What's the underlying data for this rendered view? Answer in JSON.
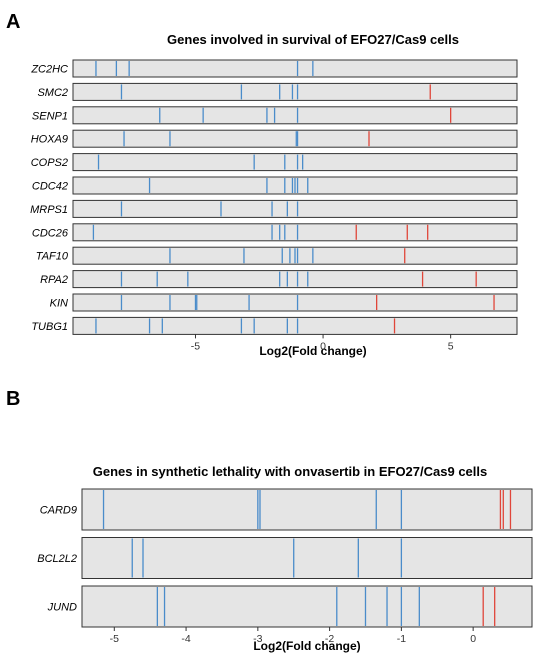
{
  "panel_letters": [
    "A",
    "B"
  ],
  "colors": {
    "negative": "#4a8cca",
    "positive": "#e0463a",
    "row_fill": "#e5e5e5"
  },
  "chart_data": [
    {
      "type": "barcode",
      "title": "Genes involved in survival of EFO27/Cas9 cells",
      "xlabel": "Log2(Fold change)",
      "ylabel": "",
      "xlim": [
        -9.8,
        7.6
      ],
      "xticks": [
        -5,
        0,
        5
      ],
      "grid": false,
      "rows": [
        {
          "gene": "ZC2HC",
          "values": [
            -8.9,
            -8.1,
            -7.6,
            -1.0,
            -0.4
          ]
        },
        {
          "gene": "SMC2",
          "values": [
            -7.9,
            -3.2,
            -1.7,
            -1.2,
            -1.0,
            4.2
          ]
        },
        {
          "gene": "SENP1",
          "values": [
            -6.4,
            -4.7,
            -2.2,
            -1.9,
            -1.0,
            5.0
          ]
        },
        {
          "gene": "HOXA9",
          "values": [
            -7.8,
            -6.0,
            -1.05,
            -1.0,
            1.8
          ]
        },
        {
          "gene": "COPS2",
          "values": [
            -8.8,
            -2.7,
            -1.5,
            -1.0,
            -0.8
          ]
        },
        {
          "gene": "CDC42",
          "values": [
            -6.8,
            -2.2,
            -1.5,
            -1.2,
            -1.1,
            -1.0,
            -0.6
          ]
        },
        {
          "gene": "MRPS1",
          "values": [
            -7.9,
            -4.0,
            -2.0,
            -1.4,
            -1.0
          ]
        },
        {
          "gene": "CDC26",
          "values": [
            -9.0,
            -2.0,
            -1.7,
            -1.5,
            -1.0,
            1.3,
            3.3,
            4.1
          ]
        },
        {
          "gene": "TAF10",
          "values": [
            -6.0,
            -3.1,
            -1.6,
            -1.3,
            -1.1,
            -1.0,
            -0.4,
            3.2
          ]
        },
        {
          "gene": "RPA2",
          "values": [
            -7.9,
            -6.5,
            -5.3,
            -1.7,
            -1.4,
            -1.0,
            -0.6,
            3.9,
            6.0
          ]
        },
        {
          "gene": "KIN",
          "values": [
            -7.9,
            -6.0,
            -5.0,
            -4.95,
            -2.9,
            -1.0,
            2.1,
            6.7
          ]
        },
        {
          "gene": "TUBG1",
          "values": [
            -8.9,
            -6.8,
            -6.3,
            -3.2,
            -2.7,
            -1.4,
            -1.0,
            2.8
          ]
        }
      ]
    },
    {
      "type": "barcode",
      "title": "Genes in synthetic lethality with onvasertib in EFO27/Cas9 cells",
      "xlabel": "Log2(Fold change)",
      "ylabel": "",
      "xlim": [
        -5.45,
        0.82
      ],
      "xticks": [
        -5,
        -4,
        -3,
        -2,
        -1,
        0
      ],
      "grid": false,
      "rows": [
        {
          "gene": "CARD9",
          "values": [
            -5.15,
            -3.0,
            -2.97,
            -1.35,
            -1.0,
            0.38,
            0.42,
            0.52
          ]
        },
        {
          "gene": "BCL2L2",
          "values": [
            -4.75,
            -4.6,
            -2.5,
            -1.6,
            -1.0
          ]
        },
        {
          "gene": "JUND",
          "values": [
            -4.4,
            -4.3,
            -1.9,
            -1.5,
            -1.2,
            -1.0,
            -0.75,
            0.14,
            0.3
          ]
        }
      ]
    }
  ]
}
